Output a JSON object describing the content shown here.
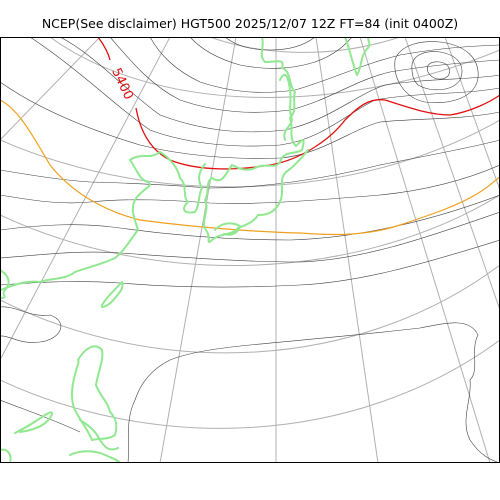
{
  "title": "NCEP(See disclaimer) HGT500 2025/12/07 12Z FT=84 (init 0400Z)",
  "contour_label": "5400",
  "colors": {
    "background": "#ffffff",
    "frame": "#000000",
    "graticule": "#b0b0b0",
    "height_contour": "#404040",
    "contour_5400": "#e01010",
    "contour_5700": "#f0a020",
    "coastline": "#90e890"
  }
}
